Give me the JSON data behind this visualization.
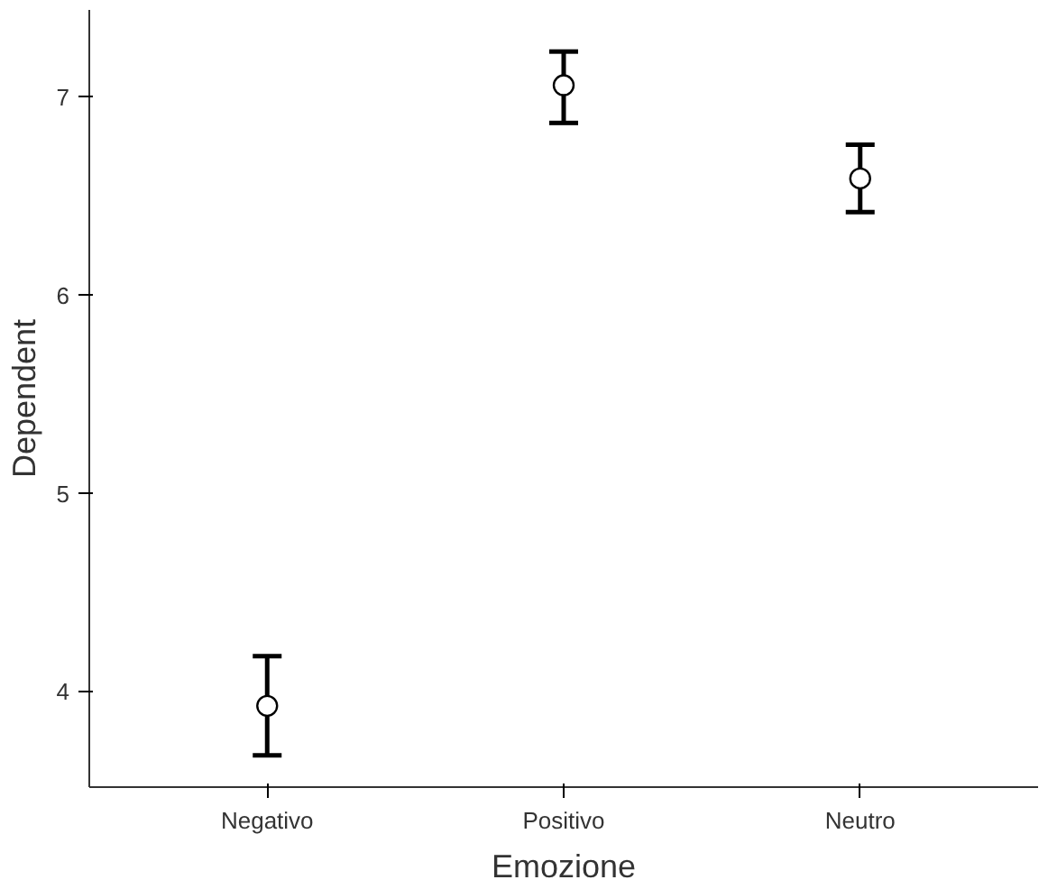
{
  "chart_data": {
    "type": "scatter",
    "xlabel": "Emozione",
    "ylabel": "Dependent",
    "categories": [
      "Negativo",
      "Positivo",
      "Neutro"
    ],
    "values": [
      3.93,
      7.06,
      6.59
    ],
    "errors": [
      [
        3.68,
        4.18
      ],
      [
        6.87,
        7.23
      ],
      [
        6.42,
        6.76
      ]
    ],
    "color": "#000000",
    "marker": "circle",
    "grid": false,
    "ylim": [
      3.52,
      7.44
    ],
    "yticks": [
      4,
      5,
      6,
      7
    ]
  }
}
